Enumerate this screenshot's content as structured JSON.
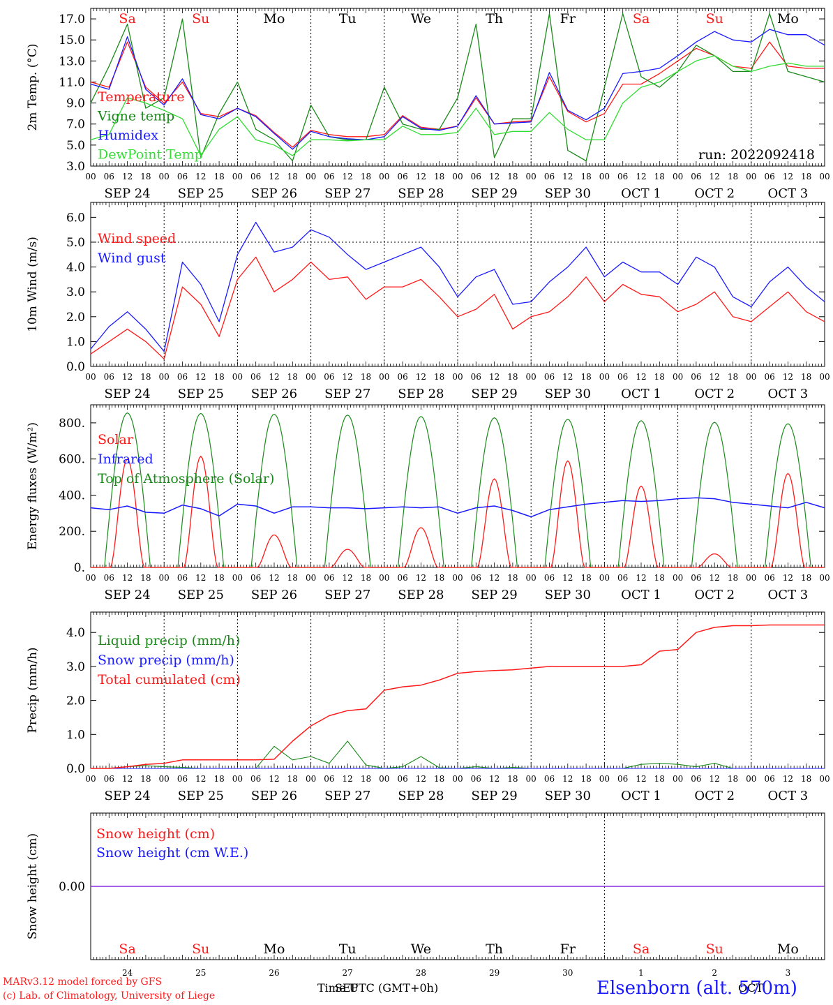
{
  "colors": {
    "red": "#ff1a1a",
    "darkgreen": "#1a8a1a",
    "lightgreen": "#33dd33",
    "blue": "#1a1aff",
    "purple": "#8a2be2"
  },
  "day_labels": [
    {
      "label": "Sa",
      "weekend": true
    },
    {
      "label": "Su",
      "weekend": true
    },
    {
      "label": "Mo",
      "weekend": false
    },
    {
      "label": "Tu",
      "weekend": false
    },
    {
      "label": "We",
      "weekend": false
    },
    {
      "label": "Th",
      "weekend": false
    },
    {
      "label": "Fr",
      "weekend": false
    },
    {
      "label": "Sa",
      "weekend": true
    },
    {
      "label": "Su",
      "weekend": true
    },
    {
      "label": "Mo",
      "weekend": false
    }
  ],
  "date_labels": [
    "SEP 24",
    "SEP 25",
    "SEP 26",
    "SEP 27",
    "SEP 28",
    "SEP 29",
    "SEP 30",
    "OCT 1",
    "OCT 2",
    "OCT 3"
  ],
  "hour_ticks": [
    "00",
    "06",
    "12",
    "18"
  ],
  "bottom_day_numbers": [
    "24",
    "25",
    "26",
    "27",
    "28",
    "29",
    "30",
    "1",
    "2",
    "3"
  ],
  "run_label": "run: 2022092418",
  "footer": {
    "model": "MARv3.12 model forced by GFS",
    "credit": "(c) Lab. of Climatology, University of Liege",
    "xlabel": "Time UTC (GMT+0h)",
    "month_sep": "SEP",
    "month_oct": "OCT",
    "station": "Elsenborn (alt. 570m)"
  },
  "chart_data": [
    {
      "type": "line",
      "ylabel": "2m Temp. (°C)",
      "ylim": [
        3.0,
        18.0
      ],
      "yticks": [
        "3.0",
        "5.0",
        "7.0",
        "9.0",
        "11.0",
        "13.0",
        "15.0",
        "17.0"
      ],
      "x": [
        0,
        6,
        12,
        18,
        24,
        30,
        36,
        42,
        48,
        54,
        60,
        66,
        72,
        78,
        84,
        90,
        96,
        102,
        108,
        114,
        120,
        126,
        132,
        138,
        144,
        150,
        156,
        162,
        168,
        174,
        180,
        186,
        192,
        198,
        204,
        210,
        216,
        222,
        228,
        234,
        240
      ],
      "x_unit": "hours since Sep 24 00 UTC",
      "series": [
        {
          "name": "Temperature",
          "color": "#ff1a1a",
          "values": [
            11.0,
            10.5,
            14.8,
            10.5,
            9.0,
            11.0,
            8.0,
            7.7,
            8.5,
            7.8,
            6.2,
            4.8,
            6.4,
            6.0,
            5.8,
            5.8,
            6.0,
            7.8,
            6.7,
            6.5,
            6.8,
            9.5,
            7.0,
            7.2,
            7.3,
            11.5,
            8.2,
            7.2,
            8.0,
            10.8,
            10.8,
            11.8,
            13.0,
            14.2,
            13.5,
            12.5,
            12.3,
            14.8,
            12.5,
            12.3,
            12.3
          ]
        },
        {
          "name": "Vigne temp",
          "color": "#1a8a1a",
          "values": [
            9.0,
            12.5,
            16.5,
            8.5,
            9.5,
            17.0,
            3.8,
            8.0,
            11.0,
            6.5,
            5.5,
            3.5,
            8.8,
            5.8,
            5.5,
            5.5,
            10.5,
            7.0,
            6.5,
            6.5,
            9.5,
            16.5,
            3.8,
            7.5,
            7.5,
            17.5,
            4.5,
            3.5,
            10.5,
            17.5,
            11.5,
            10.5,
            12.0,
            14.5,
            13.5,
            12.0,
            12.0,
            17.5,
            12.0,
            11.5,
            11.0
          ]
        },
        {
          "name": "Humidex",
          "color": "#1a1aff",
          "values": [
            10.8,
            10.3,
            15.3,
            10.3,
            8.8,
            11.3,
            7.9,
            7.5,
            8.5,
            7.7,
            6.1,
            4.6,
            6.3,
            5.8,
            5.6,
            5.5,
            5.8,
            7.7,
            6.6,
            6.4,
            6.8,
            9.7,
            7.0,
            7.1,
            7.2,
            11.9,
            8.3,
            7.4,
            8.5,
            11.8,
            12.0,
            12.3,
            13.5,
            14.8,
            15.8,
            15.0,
            14.8,
            16.0,
            15.5,
            15.5,
            14.5
          ]
        },
        {
          "name": "DewPoint Temp",
          "color": "#33dd33",
          "values": [
            5.5,
            6.0,
            9.5,
            9.0,
            8.3,
            7.5,
            4.0,
            6.5,
            7.7,
            5.5,
            5.0,
            4.0,
            5.5,
            5.5,
            5.4,
            5.5,
            5.5,
            6.8,
            6.0,
            6.0,
            6.2,
            8.5,
            6.0,
            6.3,
            6.3,
            8.1,
            6.5,
            5.5,
            5.5,
            9.0,
            10.5,
            11.0,
            12.0,
            13.0,
            13.5,
            12.5,
            12.0,
            12.5,
            12.8,
            12.5,
            12.5
          ]
        }
      ],
      "legend_placement": "left"
    },
    {
      "type": "line",
      "ylabel": "10m Wind (m/s)",
      "ylim": [
        0.0,
        6.6
      ],
      "yticks": [
        "0.0",
        "1.0",
        "2.0",
        "3.0",
        "4.0",
        "5.0",
        "6.0"
      ],
      "reference_line": 5.0,
      "x": [
        0,
        6,
        12,
        18,
        24,
        30,
        36,
        42,
        48,
        54,
        60,
        66,
        72,
        78,
        84,
        90,
        96,
        102,
        108,
        114,
        120,
        126,
        132,
        138,
        144,
        150,
        156,
        162,
        168,
        174,
        180,
        186,
        192,
        198,
        204,
        210,
        216,
        222,
        228,
        234,
        240
      ],
      "series": [
        {
          "name": "Wind speed",
          "color": "#ff1a1a",
          "values": [
            0.5,
            1.0,
            1.5,
            1.0,
            0.3,
            3.2,
            2.5,
            1.2,
            3.5,
            4.4,
            3.0,
            3.5,
            4.2,
            3.5,
            3.6,
            2.7,
            3.2,
            3.2,
            3.5,
            2.8,
            2.0,
            2.3,
            2.9,
            1.5,
            2.0,
            2.2,
            2.8,
            3.6,
            2.6,
            3.3,
            2.9,
            2.8,
            2.2,
            2.5,
            3.0,
            2.0,
            1.8,
            2.4,
            3.0,
            2.2,
            1.8
          ]
        },
        {
          "name": "Wind gust",
          "color": "#1a1aff",
          "values": [
            0.7,
            1.6,
            2.2,
            1.5,
            0.6,
            4.2,
            3.3,
            1.8,
            4.5,
            5.8,
            4.6,
            4.8,
            5.5,
            5.2,
            4.5,
            3.9,
            4.2,
            4.5,
            4.8,
            4.0,
            2.8,
            3.6,
            3.9,
            2.5,
            2.6,
            3.4,
            4.0,
            4.8,
            3.6,
            4.2,
            3.8,
            3.8,
            3.3,
            4.4,
            4.0,
            2.8,
            2.4,
            3.4,
            4.0,
            3.2,
            2.6
          ]
        }
      ],
      "legend_placement": "left"
    },
    {
      "type": "line",
      "ylabel": "Energy fluxes (W/m²)",
      "ylim": [
        0,
        900
      ],
      "yticks": [
        "0.",
        "200.",
        "400.",
        "600.",
        "800."
      ],
      "day_peak_hour": 12,
      "series": [
        {
          "name": "Solar",
          "color": "#ff1a1a",
          "daily_peak": [
            600,
            615,
            180,
            100,
            220,
            490,
            590,
            450,
            75,
            520
          ]
        },
        {
          "name": "Infrared",
          "color": "#1a1aff",
          "values": [
            330,
            320,
            340,
            305,
            300,
            345,
            325,
            285,
            350,
            340,
            300,
            335,
            335,
            330,
            330,
            325,
            330,
            335,
            330,
            335,
            300,
            330,
            340,
            315,
            280,
            320,
            335,
            350,
            360,
            370,
            365,
            370,
            380,
            385,
            380,
            360,
            350,
            340,
            330,
            360,
            330
          ]
        },
        {
          "name": "Top of Atmosphere (Solar)",
          "color": "#1a8a1a",
          "daily_peak": [
            855,
            852,
            848,
            843,
            835,
            828,
            820,
            812,
            803,
            795
          ]
        }
      ],
      "legend_placement": "left"
    },
    {
      "type": "line",
      "ylabel": "Precip (mm/h)",
      "ylim": [
        0.0,
        4.6
      ],
      "yticks": [
        "0.0",
        "1.0",
        "2.0",
        "3.0",
        "4.0"
      ],
      "x": [
        0,
        6,
        12,
        18,
        24,
        30,
        36,
        42,
        48,
        54,
        60,
        66,
        72,
        78,
        84,
        90,
        96,
        102,
        108,
        114,
        120,
        126,
        132,
        138,
        144,
        150,
        156,
        162,
        168,
        174,
        180,
        186,
        192,
        198,
        204,
        210,
        216,
        222,
        228,
        234,
        240
      ],
      "series": [
        {
          "name": "Liquid precip (mm/h)",
          "color": "#1a8a1a",
          "values": [
            0,
            0,
            0.05,
            0.08,
            0.05,
            0.03,
            0,
            0,
            0,
            0,
            0.65,
            0.25,
            0.35,
            0.15,
            0.8,
            0.1,
            0,
            0.05,
            0.35,
            0.02,
            0,
            0.05,
            0,
            0.03,
            0,
            0,
            0,
            0,
            0,
            0,
            0.12,
            0.15,
            0.12,
            0.05,
            0.15,
            0,
            0,
            0,
            0,
            0,
            0
          ]
        },
        {
          "name": "Snow precip (mm/h)",
          "color": "#1a1aff",
          "values": [
            0,
            0,
            0,
            0,
            0,
            0,
            0,
            0,
            0,
            0,
            0,
            0,
            0,
            0,
            0,
            0,
            0,
            0,
            0,
            0,
            0,
            0,
            0,
            0,
            0,
            0,
            0,
            0,
            0,
            0,
            0,
            0,
            0,
            0,
            0,
            0,
            0,
            0,
            0,
            0,
            0
          ]
        },
        {
          "name": "Total cumulated (cm)",
          "color": "#ff1a1a",
          "values": [
            0,
            0,
            0.05,
            0.12,
            0.15,
            0.25,
            0.25,
            0.25,
            0.25,
            0.25,
            0.27,
            0.8,
            1.25,
            1.55,
            1.7,
            1.75,
            2.3,
            2.4,
            2.45,
            2.6,
            2.8,
            2.85,
            2.88,
            2.9,
            2.95,
            3.0,
            3.0,
            3.0,
            3.0,
            3.0,
            3.05,
            3.45,
            3.5,
            4.0,
            4.15,
            4.2,
            4.2,
            4.22,
            4.22,
            4.22,
            4.22
          ]
        }
      ],
      "legend_placement": "left"
    },
    {
      "type": "line",
      "ylabel": "Snow height (cm)",
      "ytick_label": "0.00",
      "series": [
        {
          "name": "Snow height (cm)",
          "color": "#ff1a1a",
          "constant": 0.0
        },
        {
          "name": "Snow height (cm W.E.)",
          "color": "#1a1aff",
          "constant": 0.0
        }
      ],
      "legend_placement": "left"
    }
  ]
}
